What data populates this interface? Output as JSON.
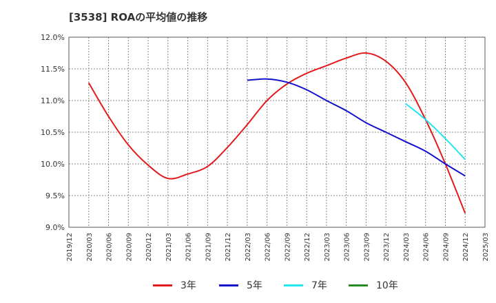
{
  "chart_data": {
    "type": "line",
    "title": "[3538]  ROAの平均値の推移",
    "y_ticks": [
      "9.0%",
      "9.5%",
      "10.0%",
      "10.5%",
      "11.0%",
      "11.5%",
      "12.0%"
    ],
    "ylim": [
      9.0,
      12.0
    ],
    "x_ticks": [
      "2019/12",
      "2020/03",
      "2020/06",
      "2020/09",
      "2020/12",
      "2021/03",
      "2021/06",
      "2021/09",
      "2021/12",
      "2022/03",
      "2022/06",
      "2022/09",
      "2022/12",
      "2023/03",
      "2023/06",
      "2023/09",
      "2023/12",
      "2024/03",
      "2024/06",
      "2024/09",
      "2024/12",
      "2025/03"
    ],
    "grid": true,
    "legend_position": "bottom",
    "series": [
      {
        "name": "3年",
        "color": "#e31a1c",
        "x": [
          "2020/03",
          "2020/06",
          "2020/09",
          "2020/12",
          "2021/03",
          "2021/06",
          "2021/09",
          "2021/12",
          "2022/03",
          "2022/06",
          "2022/09",
          "2022/12",
          "2023/03",
          "2023/06",
          "2023/09",
          "2023/12",
          "2024/03",
          "2024/06",
          "2024/09",
          "2024/12"
        ],
        "values": [
          11.28,
          10.75,
          10.3,
          9.98,
          9.77,
          9.84,
          9.96,
          10.26,
          10.62,
          11.0,
          11.26,
          11.43,
          11.55,
          11.67,
          11.75,
          11.62,
          11.28,
          10.7,
          10.0,
          9.22
        ]
      },
      {
        "name": "5年",
        "color": "#1111cc",
        "x": [
          "2022/03",
          "2022/06",
          "2022/09",
          "2022/12",
          "2023/03",
          "2023/06",
          "2023/09",
          "2023/12",
          "2024/03",
          "2024/06",
          "2024/09",
          "2024/12"
        ],
        "values": [
          11.32,
          11.34,
          11.29,
          11.17,
          11.0,
          10.84,
          10.65,
          10.5,
          10.35,
          10.2,
          10.0,
          9.81
        ]
      },
      {
        "name": "7年",
        "color": "#22e5ef",
        "x": [
          "2024/03",
          "2024/06",
          "2024/09",
          "2024/12"
        ],
        "values": [
          10.95,
          10.7,
          10.4,
          10.07
        ]
      },
      {
        "name": "10年",
        "color": "#228b22",
        "x": [],
        "values": []
      }
    ]
  }
}
